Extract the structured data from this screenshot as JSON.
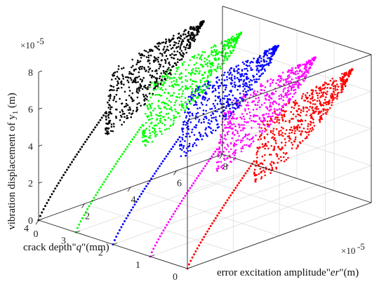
{
  "chart_data": {
    "type": "scatter",
    "projection": "3d",
    "title": "",
    "xlabel": {
      "prefix": "error excitation amplitude\"",
      "var": "er",
      "suffix": "\"(m)"
    },
    "ylabel": {
      "prefix": "crack depth\"",
      "var": "q",
      "suffix": "\"(mm)"
    },
    "zlabel": {
      "prefix": "vibration displacement of y",
      "sub": "1",
      "suffix": " (m)"
    },
    "x_multiplier": {
      "base": "×10",
      "exp": "-5"
    },
    "z_multiplier": {
      "base": "×10",
      "exp": "-5"
    },
    "xlim": [
      0,
      8
    ],
    "ylim": [
      0,
      4
    ],
    "zlim": [
      0,
      8
    ],
    "xticks": [
      "2",
      "4",
      "6",
      "8"
    ],
    "yticks": [
      "0",
      "1",
      "2",
      "3",
      "4"
    ],
    "zticks": [
      "0",
      "2",
      "4",
      "6",
      "8"
    ],
    "grid": true,
    "series": [
      {
        "q": 0.0,
        "color": "#ff0000",
        "ramp_end_x": 2.9,
        "ramp_end_z": 4.5,
        "cloud": {
          "x": [
            2.9,
            7.2
          ],
          "z_low": [
            3.3,
            7.2
          ],
          "z_high": [
            6.3,
            7.6
          ]
        }
      },
      {
        "q": 1.0,
        "color": "#ff00ff",
        "ramp_end_x": 2.9,
        "ramp_end_z": 4.5,
        "cloud": {
          "x": [
            2.9,
            7.2
          ],
          "z_low": [
            3.3,
            7.2
          ],
          "z_high": [
            6.3,
            7.6
          ]
        }
      },
      {
        "q": 2.0,
        "color": "#0000ff",
        "ramp_end_x": 2.9,
        "ramp_end_z": 4.5,
        "cloud": {
          "x": [
            2.9,
            7.2
          ],
          "z_low": [
            3.3,
            7.2
          ],
          "z_high": [
            6.3,
            7.6
          ]
        }
      },
      {
        "q": 3.0,
        "color": "#00ff00",
        "ramp_end_x": 2.9,
        "ramp_end_z": 4.5,
        "cloud": {
          "x": [
            2.9,
            7.2
          ],
          "z_low": [
            3.3,
            7.2
          ],
          "z_high": [
            6.3,
            7.6
          ]
        }
      },
      {
        "q": 4.0,
        "color": "#000000",
        "ramp_end_x": 2.9,
        "ramp_end_z": 4.5,
        "cloud": {
          "x": [
            2.9,
            7.2
          ],
          "z_low": [
            3.3,
            7.2
          ],
          "z_high": [
            6.3,
            7.6
          ]
        }
      }
    ]
  }
}
